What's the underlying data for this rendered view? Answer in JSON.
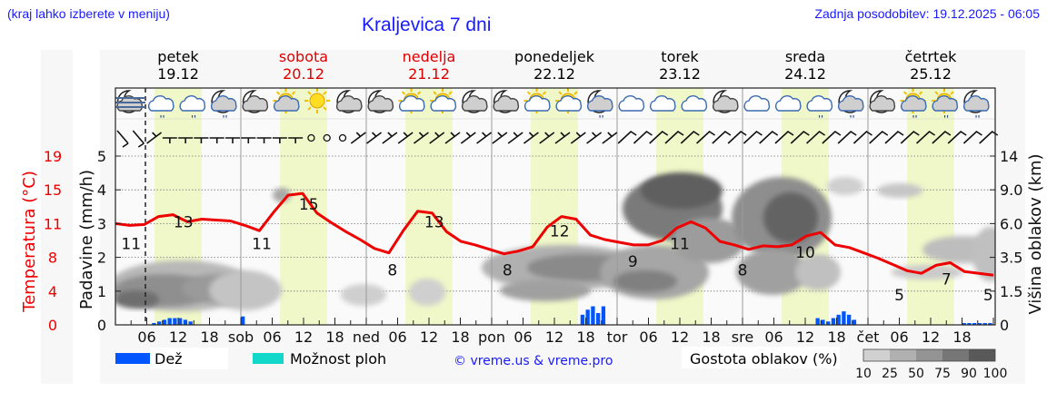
{
  "header": {
    "location_hint": "(kraj lahko izberete v meniju)",
    "title": "Kraljevica 7 dni",
    "updated": "Zadnja posodobitev: 19.12.2025 - 06:05"
  },
  "days": [
    {
      "name": "petek",
      "date": "19.12",
      "color": "#000000"
    },
    {
      "name": "sobota",
      "date": "20.12",
      "color": "#dd0000"
    },
    {
      "name": "nedelja",
      "date": "21.12",
      "color": "#dd0000"
    },
    {
      "name": "ponedeljek",
      "date": "22.12",
      "color": "#000000"
    },
    {
      "name": "torek",
      "date": "23.12",
      "color": "#000000"
    },
    {
      "name": "sreda",
      "date": "24.12",
      "color": "#000000"
    },
    {
      "name": "četrtek",
      "date": "25.12",
      "color": "#000000"
    }
  ],
  "axes": {
    "left_temp_label": "Temperatura (°C)",
    "left_temp_ticks": [
      "19",
      "15",
      "11",
      "8",
      "4",
      "0"
    ],
    "left_precip_label": "Padavine (mm/h)",
    "left_precip_ticks": [
      "5",
      "4",
      "3",
      "2",
      "1",
      "0"
    ],
    "right_label": "Višina oblakov (km)",
    "right_ticks": [
      "14",
      "9.0",
      "6.0",
      "3.5",
      "1.5",
      "0"
    ],
    "x_ticks": [
      "06",
      "12",
      "18",
      "sob",
      "06",
      "12",
      "18",
      "ned",
      "06",
      "12",
      "18",
      "pon",
      "06",
      "12",
      "18",
      "tor",
      "06",
      "12",
      "18",
      "sre",
      "06",
      "12",
      "18",
      "čet",
      "06",
      "12",
      "18"
    ]
  },
  "legend": {
    "rain_label": "Dež",
    "rain_color": "#0055ff",
    "storm_label": "Možnost ploh",
    "storm_color": "#11d8c8",
    "copyright": "© vreme.us & vreme.pro",
    "cloud_label": "Gostota oblakov (%)",
    "cloud_scale": [
      "10",
      "25",
      "50",
      "75",
      "90",
      "100"
    ],
    "cloud_colors": [
      "#d0d0d0",
      "#b0b0b0",
      "#939393",
      "#767676",
      "#595959"
    ]
  },
  "colors": {
    "temperature_line": "#ee0000",
    "daylight_band": "#f0f7c8",
    "panel_bg": "#f7f7f7"
  },
  "chart_data": {
    "type": "line",
    "title": "Kraljevica 7 dni",
    "xlabel": "",
    "ylabel": "Temperatura (°C) / Padavine (mm/h)",
    "y2label": "Višina oblakov (km)",
    "temp_range": [
      0,
      19
    ],
    "precip_range": [
      0,
      5.5
    ],
    "temperature_labels": [
      {
        "day": "petek",
        "time": "03",
        "value": 11
      },
      {
        "day": "petek",
        "time": "13",
        "value": 13
      },
      {
        "day": "sobota",
        "time": "04",
        "value": 11
      },
      {
        "day": "sobota",
        "time": "13",
        "value": 15
      },
      {
        "day": "nedelja",
        "time": "05",
        "value": 8
      },
      {
        "day": "nedelja",
        "time": "13",
        "value": 13
      },
      {
        "day": "ponedeljek",
        "time": "03",
        "value": 8
      },
      {
        "day": "ponedeljek",
        "time": "13",
        "value": 12
      },
      {
        "day": "torek",
        "time": "03",
        "value": 9
      },
      {
        "day": "torek",
        "time": "12",
        "value": 11
      },
      {
        "day": "sreda",
        "time": "00",
        "value": 8
      },
      {
        "day": "sreda",
        "time": "12",
        "value": 10
      },
      {
        "day": "četrtek",
        "time": "06",
        "value": 5
      },
      {
        "day": "četrtek",
        "time": "15",
        "value": 7
      },
      {
        "day": "četrtek",
        "time": "23",
        "value": 5
      }
    ],
    "temperature_series_hourly3": [
      11.4,
      11.2,
      11.3,
      12.2,
      12.4,
      11.6,
      11.9,
      11.8,
      11.7,
      11.2,
      10.6,
      12.7,
      14.6,
      14.8,
      12.6,
      11.5,
      10.5,
      9.6,
      8.6,
      8.1,
      10.6,
      12.8,
      12.6,
      10.5,
      9.4,
      9.0,
      8.5,
      8.0,
      8.3,
      8.8,
      11.0,
      12.2,
      11.9,
      10.1,
      9.6,
      9.3,
      9.0,
      9.0,
      9.5,
      10.9,
      11.6,
      10.9,
      9.4,
      9.0,
      8.5,
      8.9,
      8.8,
      9.0,
      10.0,
      10.4,
      9.0,
      8.7,
      8.1,
      7.5,
      6.8,
      6.1,
      5.8,
      6.7,
      7.0,
      6.0,
      5.8,
      5.6
    ],
    "precip_bars": [
      {
        "day": "petek",
        "time": "07-16",
        "values_mm": [
          0.05,
          0.1,
          0.15,
          0.2,
          0.2,
          0.2,
          0.15,
          0.1
        ]
      },
      {
        "day": "sobota",
        "time": "00",
        "values_mm": [
          0.25
        ]
      },
      {
        "day": "ponedeljek",
        "time": "17-21",
        "values_mm": [
          0.3,
          0.45,
          0.55,
          0.35,
          0.55
        ]
      },
      {
        "day": "sreda",
        "time": "14-22",
        "values_mm": [
          0.2,
          0.15,
          0.1,
          0.2,
          0.3,
          0.4,
          0.3,
          0.15
        ]
      },
      {
        "day": "četrtek",
        "time": "18-24",
        "values_mm": [
          0.03,
          0.03,
          0.05,
          0.03,
          0.03,
          0.03
        ]
      }
    ]
  }
}
